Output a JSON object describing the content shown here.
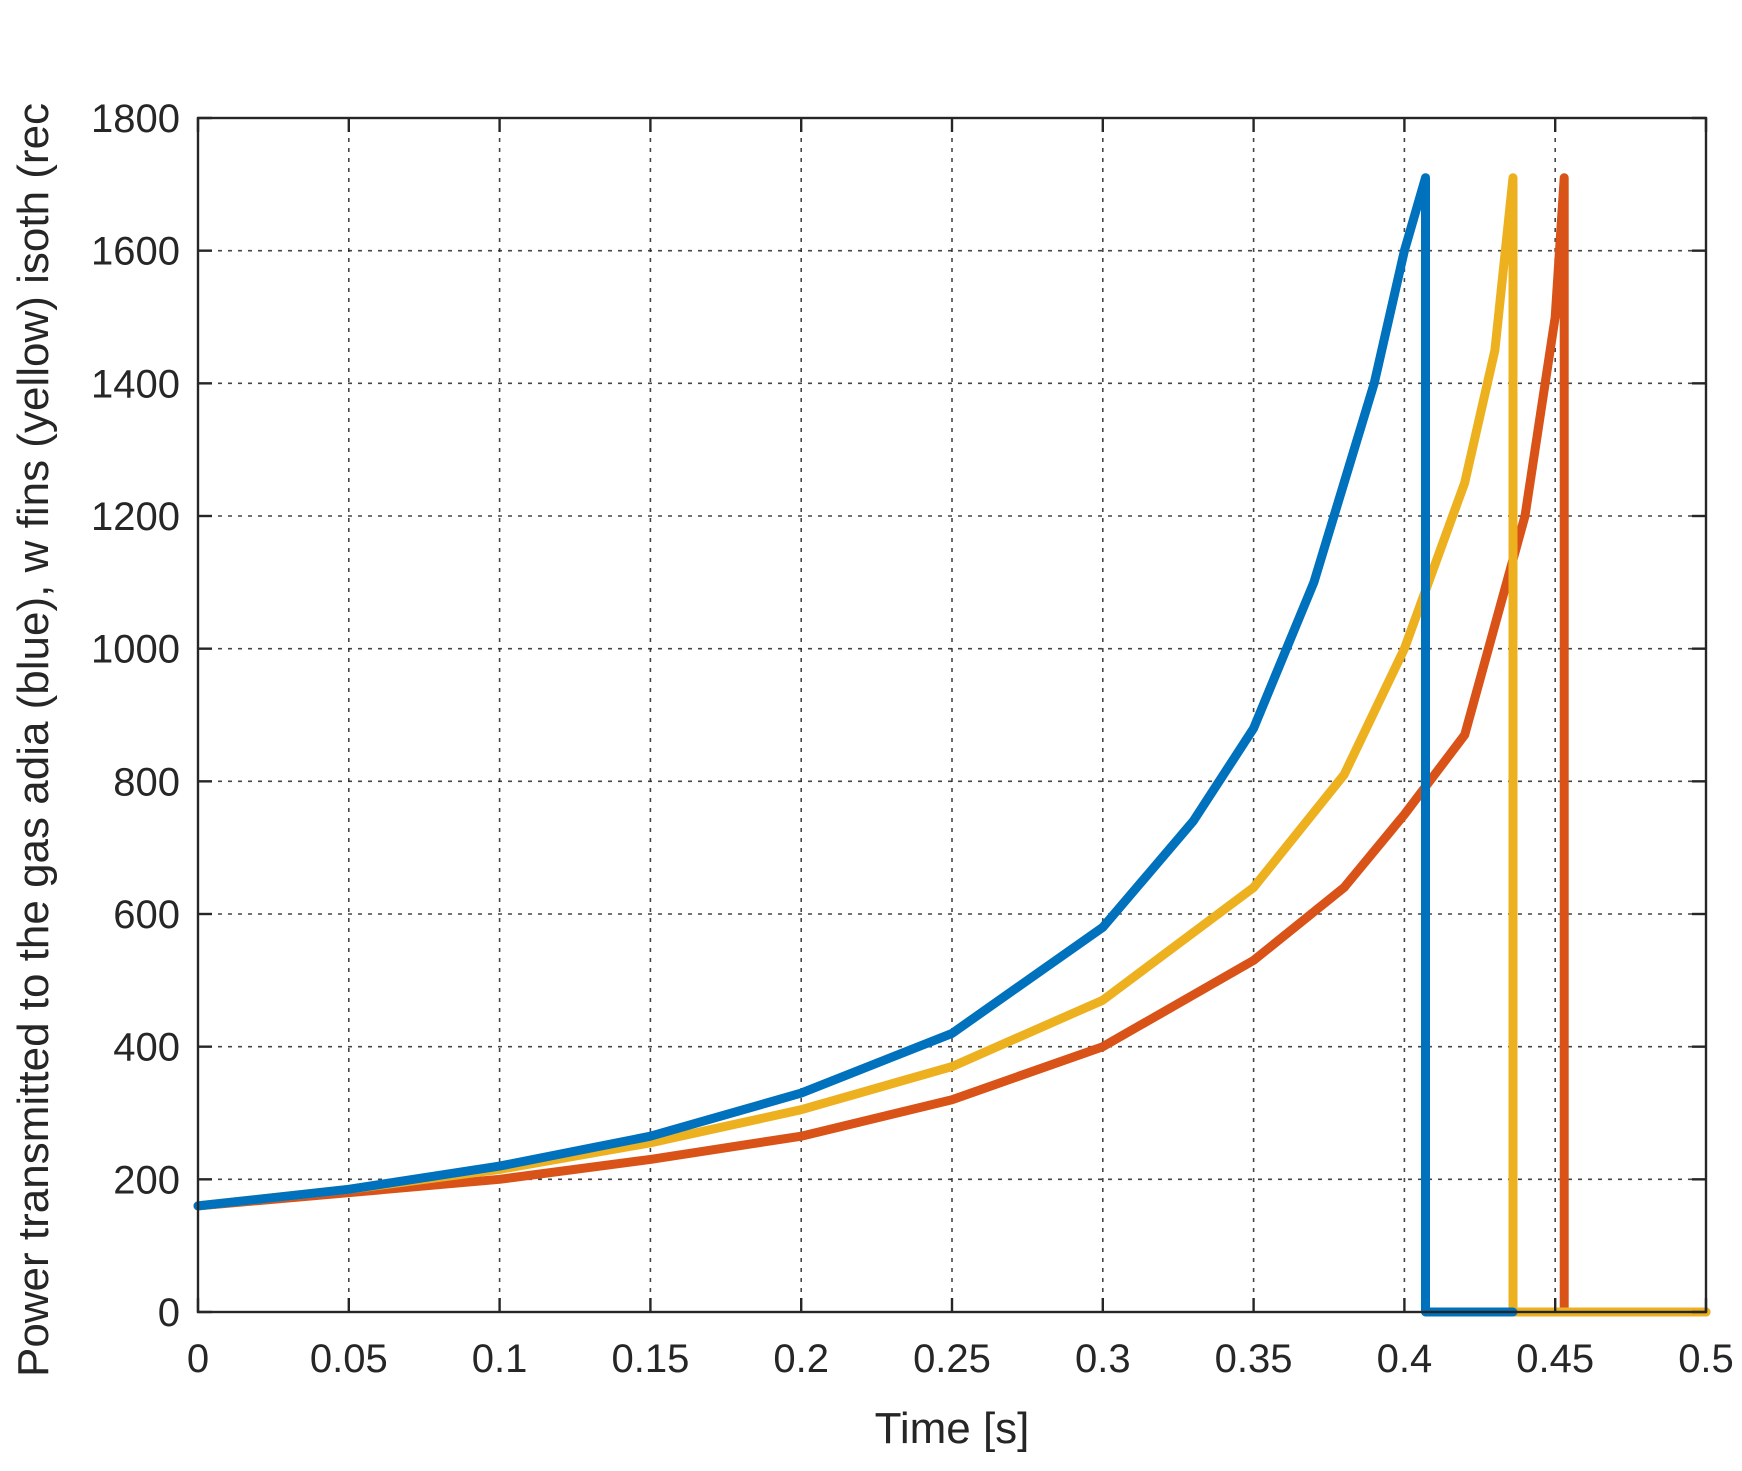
{
  "chart_data": {
    "type": "line",
    "title": "",
    "xlabel": "Time [s]",
    "ylabel": "Power transmitted to the gas adia (blue), w fins (yellow) isoth (rec",
    "xlim": [
      0,
      0.5
    ],
    "ylim": [
      0,
      1800
    ],
    "xticks": [
      0,
      0.05,
      0.1,
      0.15,
      0.2,
      0.25,
      0.3,
      0.35,
      0.4,
      0.45,
      0.5
    ],
    "xtick_labels": [
      "0",
      "0.05",
      "0.1",
      "0.15",
      "0.2",
      "0.25",
      "0.3",
      "0.35",
      "0.4",
      "0.45",
      "0.5"
    ],
    "yticks": [
      0,
      200,
      400,
      600,
      800,
      1000,
      1200,
      1400,
      1600,
      1800
    ],
    "ytick_labels": [
      "0",
      "200",
      "400",
      "600",
      "800",
      "1000",
      "1200",
      "1400",
      "1600",
      "1800"
    ],
    "grid": true,
    "legend": "none",
    "series": [
      {
        "color": "#d95319",
        "x": [
          0,
          0.05,
          0.1,
          0.15,
          0.2,
          0.25,
          0.3,
          0.35,
          0.38,
          0.4,
          0.42,
          0.44,
          0.45,
          0.453,
          0.453,
          0.5
        ],
        "y": [
          160,
          180,
          200,
          230,
          265,
          320,
          400,
          530,
          640,
          750,
          870,
          1200,
          1500,
          1710,
          0,
          0
        ]
      },
      {
        "color": "#edb120",
        "x": [
          0,
          0.05,
          0.1,
          0.15,
          0.2,
          0.25,
          0.3,
          0.35,
          0.38,
          0.4,
          0.42,
          0.43,
          0.436,
          0.436,
          0.5
        ],
        "y": [
          160,
          185,
          215,
          255,
          305,
          370,
          470,
          640,
          810,
          1000,
          1250,
          1450,
          1710,
          0,
          0
        ]
      },
      {
        "color": "#0072bd",
        "x": [
          0,
          0.05,
          0.1,
          0.15,
          0.2,
          0.25,
          0.3,
          0.33,
          0.35,
          0.37,
          0.39,
          0.4,
          0.407,
          0.407,
          0.436
        ],
        "y": [
          160,
          185,
          220,
          265,
          330,
          420,
          580,
          740,
          880,
          1100,
          1400,
          1600,
          1710,
          0,
          0
        ]
      }
    ]
  }
}
